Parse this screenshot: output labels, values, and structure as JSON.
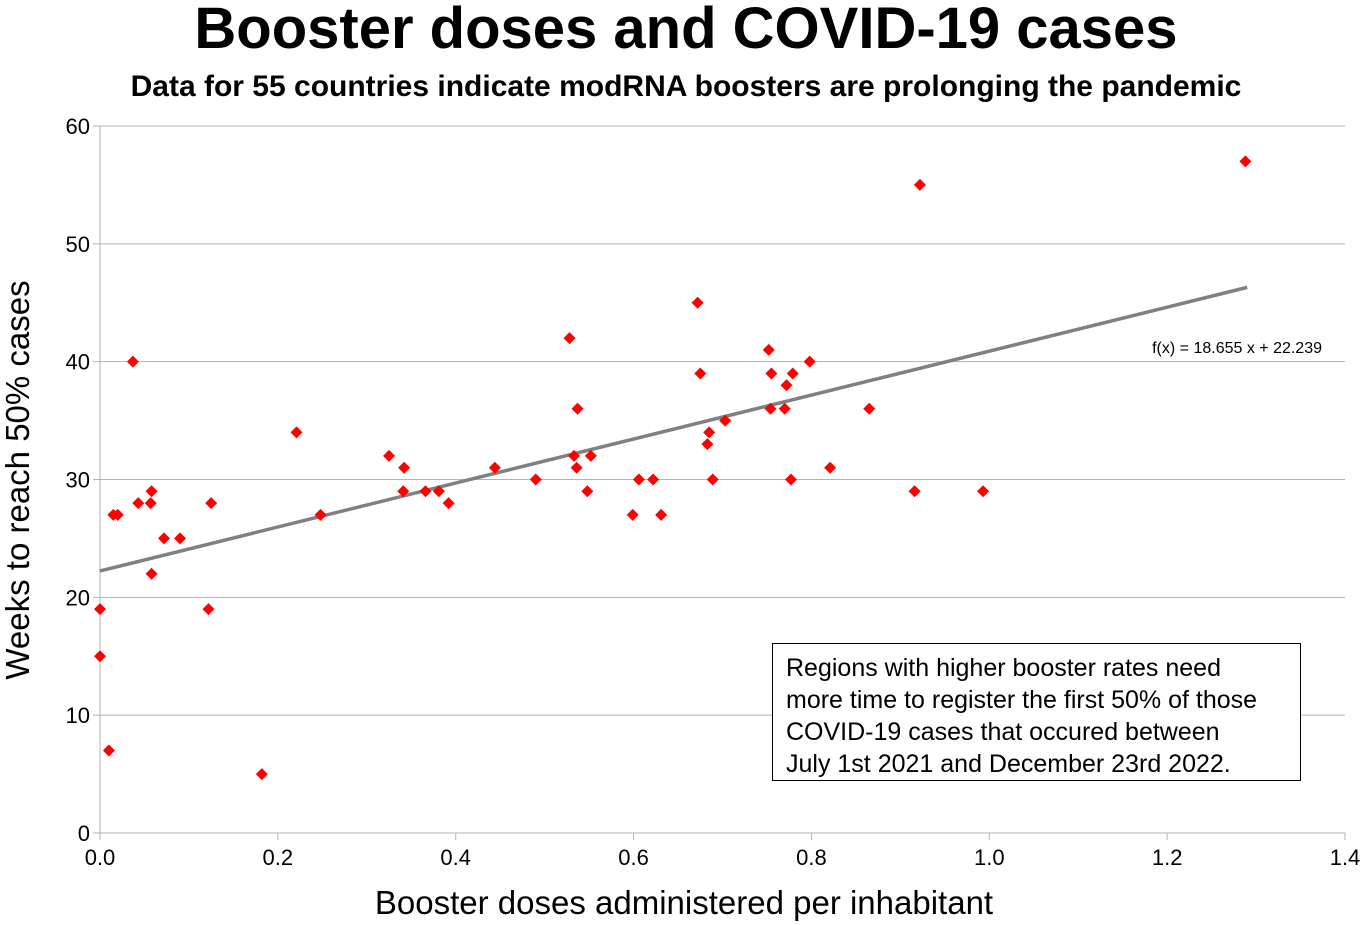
{
  "chart_data": {
    "type": "scatter",
    "title": "Booster doses and COVID-19 cases",
    "subtitle": "Data for 55 countries indicate modRNA boosters are prolonging the pandemic",
    "xlabel": "Booster doses administered per inhabitant",
    "ylabel": "Weeks to reach 50% cases",
    "xlim": [
      0,
      1.4
    ],
    "ylim": [
      0,
      60
    ],
    "xticks": [
      "0.0",
      "0.2",
      "0.4",
      "0.6",
      "0.8",
      "1.0",
      "1.2",
      "1.4"
    ],
    "yticks": [
      "0",
      "10",
      "20",
      "30",
      "40",
      "50",
      "60"
    ],
    "grid": "horizontal",
    "marker_color": "#ff0000",
    "trendline_color": "#808080",
    "trendline": {
      "slope": 18.655,
      "intercept": 22.239,
      "x_range": [
        0,
        1.29
      ],
      "label": "f(x) = 18.655 x + 22.239"
    },
    "annotation": "Regions with higher booster rates need\nmore time to register the first 50% of those\nCOVID-19 cases that occured between\nJuly 1st 2021 and December 23rd 2022.",
    "points": [
      [
        0.0,
        19
      ],
      [
        0.0,
        15
      ],
      [
        0.01,
        7
      ],
      [
        0.015,
        27
      ],
      [
        0.02,
        27
      ],
      [
        0.037,
        40
      ],
      [
        0.043,
        28
      ],
      [
        0.058,
        29
      ],
      [
        0.057,
        28
      ],
      [
        0.058,
        22
      ],
      [
        0.072,
        25
      ],
      [
        0.09,
        25
      ],
      [
        0.122,
        19
      ],
      [
        0.125,
        28
      ],
      [
        0.182,
        5
      ],
      [
        0.221,
        34
      ],
      [
        0.248,
        27
      ],
      [
        0.325,
        32
      ],
      [
        0.342,
        31
      ],
      [
        0.341,
        29
      ],
      [
        0.366,
        29
      ],
      [
        0.381,
        29
      ],
      [
        0.392,
        28
      ],
      [
        0.444,
        31
      ],
      [
        0.49,
        30
      ],
      [
        0.528,
        42
      ],
      [
        0.533,
        32
      ],
      [
        0.536,
        31
      ],
      [
        0.537,
        36
      ],
      [
        0.548,
        29
      ],
      [
        0.552,
        32
      ],
      [
        0.599,
        27
      ],
      [
        0.606,
        30
      ],
      [
        0.622,
        30
      ],
      [
        0.631,
        27
      ],
      [
        0.672,
        45
      ],
      [
        0.675,
        39
      ],
      [
        0.683,
        33
      ],
      [
        0.685,
        34
      ],
      [
        0.689,
        30
      ],
      [
        0.703,
        35
      ],
      [
        0.752,
        41
      ],
      [
        0.754,
        36
      ],
      [
        0.755,
        39
      ],
      [
        0.77,
        36
      ],
      [
        0.772,
        38
      ],
      [
        0.777,
        30
      ],
      [
        0.779,
        39
      ],
      [
        0.798,
        40
      ],
      [
        0.821,
        31
      ],
      [
        0.865,
        36
      ],
      [
        0.916,
        29
      ],
      [
        0.922,
        55
      ],
      [
        0.993,
        29
      ],
      [
        1.288,
        57
      ]
    ]
  }
}
